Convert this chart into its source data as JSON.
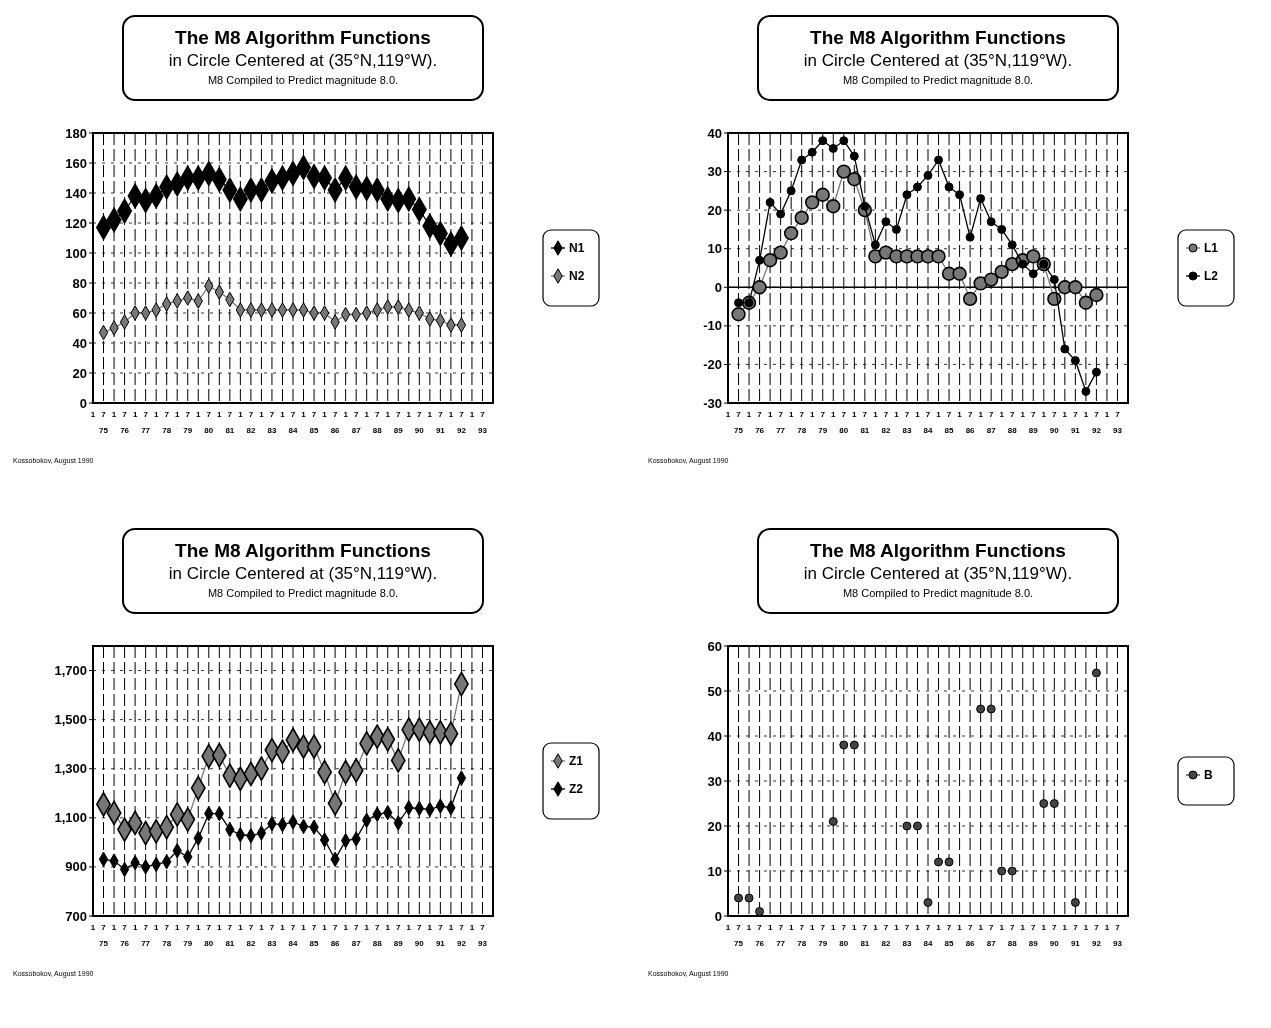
{
  "chart_data": [
    {
      "type": "line",
      "title": "The M8 Algorithm Functions",
      "subtitle": "in Circle Centered at (35°N,119°W).\nM8 Compiled to Predict magnitude 8.0.",
      "annotations": [
        "Kossobokov, August 1990"
      ],
      "categories": [
        "1",
        "7\n75",
        "1",
        "7\n76",
        "1",
        "7\n77",
        "1",
        "7\n78",
        "1",
        "7\n79",
        "1",
        "7\n80",
        "1",
        "7\n81",
        "1",
        "7\n82",
        "1",
        "7\n83",
        "1",
        "7\n84",
        "1",
        "7\n85",
        "1",
        "7\n86",
        "1",
        "7\n87",
        "1",
        "7\n88",
        "1",
        "7\n89",
        "1",
        "7\n90",
        "1",
        "7\n91",
        "1",
        "7\n92",
        "1",
        "7\n93"
      ],
      "series": [
        {
          "name": "N1",
          "color": "#000000",
          "values": [
            null,
            117,
            122,
            128,
            138,
            135,
            138,
            144,
            146,
            150,
            150,
            153,
            149,
            142,
            136,
            142,
            142,
            148,
            150,
            153,
            157,
            151,
            150,
            142,
            150,
            144,
            143,
            142,
            136,
            135,
            136,
            129,
            118,
            113,
            106,
            110,
            null,
            null
          ]
        },
        {
          "name": "N2",
          "color": "#777777",
          "values": [
            null,
            47,
            50,
            54,
            60,
            60,
            62,
            66,
            68,
            70,
            68,
            78,
            74,
            69,
            62,
            62,
            62,
            62,
            62,
            62,
            62,
            60,
            60,
            54,
            59,
            59,
            60,
            62,
            64,
            64,
            62,
            60,
            56,
            55,
            52,
            52,
            null,
            null
          ]
        }
      ],
      "ylim": [
        0,
        180
      ],
      "yticks": [
        0,
        20,
        40,
        60,
        80,
        100,
        120,
        140,
        160,
        180
      ],
      "grid": true,
      "legend": "right",
      "marker": "diamond"
    },
    {
      "type": "line",
      "title": "The M8 Algorithm Functions",
      "subtitle": "in Circle Centered at (35°N,119°W).\nM8 Compiled to Predict magnitude 8.0.",
      "annotations": [
        "Kossobokov, August 1990"
      ],
      "categories": [
        "1",
        "7\n75",
        "1",
        "7\n76",
        "1",
        "7\n77",
        "1",
        "7\n78",
        "1",
        "7\n79",
        "1",
        "7\n80",
        "1",
        "7\n81",
        "1",
        "7\n82",
        "1",
        "7\n83",
        "1",
        "7\n84",
        "1",
        "7\n85",
        "1",
        "7\n86",
        "1",
        "7\n87",
        "1",
        "7\n88",
        "1",
        "7\n89",
        "1",
        "7\n90",
        "1",
        "7\n91",
        "1",
        "7\n92",
        "1",
        "7\n93"
      ],
      "series": [
        {
          "name": "L1",
          "color": "#777777",
          "values": [
            null,
            -7,
            -4,
            0,
            7,
            9,
            14,
            18,
            22,
            24,
            21,
            30,
            28,
            20,
            8,
            9,
            8,
            8,
            8,
            8,
            8,
            3.5,
            3.5,
            -3,
            1,
            2,
            4,
            6,
            7,
            8,
            6,
            -3,
            0,
            0,
            -4,
            -2,
            null,
            null
          ]
        },
        {
          "name": "L2",
          "color": "#000000",
          "values": [
            null,
            -4,
            -4,
            7,
            22,
            19,
            25,
            33,
            35,
            38,
            36,
            38,
            34,
            21,
            11,
            17,
            15,
            24,
            26,
            29,
            33,
            26,
            24,
            13,
            23,
            17,
            15,
            11,
            6,
            3.5,
            6,
            2,
            -16,
            -19,
            -27,
            -22,
            null,
            null
          ]
        }
      ],
      "ylim": [
        -30,
        40
      ],
      "yticks": [
        -30,
        -20,
        -10,
        0,
        10,
        20,
        30,
        40
      ],
      "ref_lines": [
        {
          "axis": "y",
          "value": 0
        }
      ],
      "grid": true,
      "legend": "right",
      "marker": "circle"
    },
    {
      "type": "line",
      "title": "The M8 Algorithm Functions",
      "subtitle": "in Circle Centered at (35°N,119°W).\nM8 Compiled to Predict magnitude 8.0.",
      "annotations": [
        "Kossobokov, August 1990"
      ],
      "categories": [
        "1",
        "7\n75",
        "1",
        "7\n76",
        "1",
        "7\n77",
        "1",
        "7\n78",
        "1",
        "7\n79",
        "1",
        "7\n80",
        "1",
        "7\n81",
        "1",
        "7\n82",
        "1",
        "7\n83",
        "1",
        "7\n84",
        "1",
        "7\n85",
        "1",
        "7\n86",
        "1",
        "7\n87",
        "1",
        "7\n88",
        "1",
        "7\n89",
        "1",
        "7\n90",
        "1",
        "7\n91",
        "1",
        "7\n92",
        "1",
        "7\n93"
      ],
      "series": [
        {
          "name": "Z1",
          "color": "#777777",
          "values": [
            null,
            1155,
            1120,
            1052,
            1079,
            1038,
            1045,
            1062,
            1114,
            1093,
            1221,
            1351,
            1355,
            1272,
            1259,
            1279,
            1300,
            1376,
            1369,
            1417,
            1390,
            1390,
            1286,
            1159,
            1286,
            1293,
            1403,
            1431,
            1420,
            1334,
            1459,
            1459,
            1448,
            1448,
            1443,
            1645,
            null,
            null
          ]
        },
        {
          "name": "Z2",
          "color": "#000000",
          "values": [
            null,
            931,
            924,
            890,
            917,
            900,
            910,
            921,
            966,
            941,
            1017,
            1117,
            1117,
            1052,
            1031,
            1027,
            1038,
            1076,
            1072,
            1083,
            1065,
            1062,
            1010,
            931,
            1007,
            1014,
            1090,
            1114,
            1121,
            1079,
            1141,
            1138,
            1134,
            1148,
            1141,
            1262,
            null,
            null
          ]
        }
      ],
      "ylim": [
        700,
        1800
      ],
      "yticks": [
        {
          "value": 700,
          "label": "700"
        },
        {
          "value": 900,
          "label": "900"
        },
        {
          "value": 1100,
          "label": "1,100"
        },
        {
          "value": 1300,
          "label": "1,300"
        },
        {
          "value": 1500,
          "label": "1,500"
        },
        {
          "value": 1700,
          "label": "1,700"
        }
      ],
      "grid": true,
      "legend": "right",
      "marker": "diamond"
    },
    {
      "type": "scatter",
      "title": "The M8 Algorithm Functions",
      "subtitle": "in Circle Centered at (35°N,119°W).\nM8 Compiled to Predict magnitude 8.0.",
      "annotations": [
        "Kossobokov, August 1990"
      ],
      "categories": [
        "1",
        "7\n75",
        "1",
        "7\n76",
        "1",
        "7\n77",
        "1",
        "7\n78",
        "1",
        "7\n79",
        "1",
        "7\n80",
        "1",
        "7\n81",
        "1",
        "7\n82",
        "1",
        "7\n83",
        "1",
        "7\n84",
        "1",
        "7\n85",
        "1",
        "7\n86",
        "1",
        "7\n87",
        "1",
        "7\n88",
        "1",
        "7\n89",
        "1",
        "7\n90",
        "1",
        "7\n91",
        "1",
        "7\n92",
        "1",
        "7\n93"
      ],
      "series": [
        {
          "name": "B",
          "color": "#444444",
          "values": [
            null,
            4,
            4,
            1,
            null,
            null,
            null,
            null,
            null,
            null,
            21,
            38,
            38,
            null,
            null,
            null,
            null,
            20,
            20,
            3,
            12,
            12,
            null,
            null,
            46,
            46,
            10,
            10,
            null,
            null,
            25,
            25,
            null,
            3,
            null,
            54,
            null,
            null
          ]
        }
      ],
      "ylim": [
        0,
        60
      ],
      "yticks": [
        0,
        10,
        20,
        30,
        40,
        50,
        60
      ],
      "grid": true,
      "legend": "right",
      "marker": "circle"
    }
  ]
}
